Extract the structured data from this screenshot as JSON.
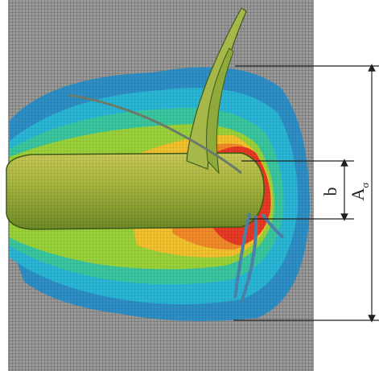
{
  "annotations": {
    "b": "b",
    "a_sigma": {
      "main": "A",
      "sub": "σ"
    }
  }
}
